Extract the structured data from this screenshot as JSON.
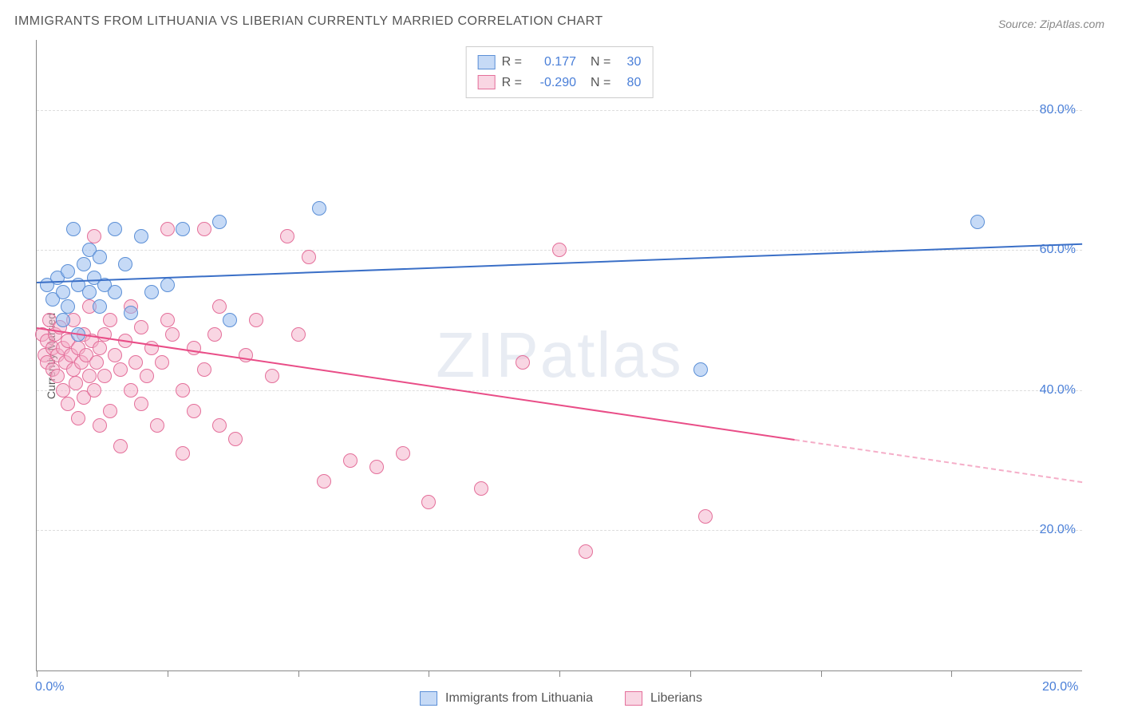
{
  "title": "IMMIGRANTS FROM LITHUANIA VS LIBERIAN CURRENTLY MARRIED CORRELATION CHART",
  "source_prefix": "Source: ",
  "source": "ZipAtlas.com",
  "ylabel": "Currently Married",
  "watermark_bold": "ZIP",
  "watermark_light": "atlas",
  "chart": {
    "type": "scatter",
    "background_color": "#ffffff",
    "grid_color": "#dddddd",
    "axis_color": "#888888",
    "tick_label_color": "#4a7fd8",
    "tick_fontsize": 16,
    "xlim": [
      0,
      20
    ],
    "ylim": [
      0,
      90
    ],
    "y_gridlines": [
      20,
      40,
      60,
      80
    ],
    "y_tick_labels": [
      "20.0%",
      "40.0%",
      "60.0%",
      "80.0%"
    ],
    "x_ticks": [
      0,
      2.5,
      5,
      7.5,
      10,
      12.5,
      15,
      17.5
    ],
    "x_tick_labels": {
      "0": "0.0%",
      "20": "20.0%"
    },
    "point_radius": 9,
    "series": [
      {
        "id": "lithuania",
        "label": "Immigrants from Lithuania",
        "fill": "rgba(151,187,238,0.55)",
        "stroke": "#5b8fd6",
        "trend_color": "#3a6fc7",
        "r": "0.177",
        "n": "30",
        "trend": {
          "x1": 0.0,
          "y1": 55.5,
          "x2": 20.0,
          "y2": 61.0,
          "dashed_from_x": null
        },
        "points": [
          [
            0.2,
            55
          ],
          [
            0.3,
            53
          ],
          [
            0.4,
            56
          ],
          [
            0.5,
            54
          ],
          [
            0.5,
            50
          ],
          [
            0.6,
            57
          ],
          [
            0.6,
            52
          ],
          [
            0.7,
            63
          ],
          [
            0.8,
            55
          ],
          [
            0.8,
            48
          ],
          [
            0.9,
            58
          ],
          [
            1.0,
            54
          ],
          [
            1.0,
            60
          ],
          [
            1.1,
            56
          ],
          [
            1.2,
            59
          ],
          [
            1.2,
            52
          ],
          [
            1.3,
            55
          ],
          [
            1.5,
            63
          ],
          [
            1.5,
            54
          ],
          [
            1.7,
            58
          ],
          [
            1.8,
            51
          ],
          [
            2.0,
            62
          ],
          [
            2.2,
            54
          ],
          [
            2.5,
            55
          ],
          [
            2.8,
            63
          ],
          [
            3.5,
            64
          ],
          [
            3.7,
            50
          ],
          [
            5.4,
            66
          ],
          [
            12.7,
            43
          ],
          [
            18.0,
            64
          ]
        ]
      },
      {
        "id": "liberians",
        "label": "Liberians",
        "fill": "rgba(244,174,199,0.5)",
        "stroke": "#e46f9a",
        "trend_color": "#e94d87",
        "r": "-0.290",
        "n": "80",
        "trend": {
          "x1": 0.0,
          "y1": 49.0,
          "x2": 20.0,
          "y2": 27.0,
          "dashed_from_x": 14.5
        },
        "points": [
          [
            0.1,
            48
          ],
          [
            0.15,
            45
          ],
          [
            0.2,
            47
          ],
          [
            0.2,
            44
          ],
          [
            0.25,
            50
          ],
          [
            0.3,
            46
          ],
          [
            0.3,
            43
          ],
          [
            0.35,
            48
          ],
          [
            0.4,
            45
          ],
          [
            0.4,
            42
          ],
          [
            0.45,
            49
          ],
          [
            0.5,
            46
          ],
          [
            0.5,
            40
          ],
          [
            0.55,
            44
          ],
          [
            0.6,
            47
          ],
          [
            0.6,
            38
          ],
          [
            0.65,
            45
          ],
          [
            0.7,
            43
          ],
          [
            0.7,
            50
          ],
          [
            0.75,
            41
          ],
          [
            0.8,
            46
          ],
          [
            0.8,
            36
          ],
          [
            0.85,
            44
          ],
          [
            0.9,
            48
          ],
          [
            0.9,
            39
          ],
          [
            0.95,
            45
          ],
          [
            1.0,
            42
          ],
          [
            1.0,
            52
          ],
          [
            1.05,
            47
          ],
          [
            1.1,
            40
          ],
          [
            1.1,
            62
          ],
          [
            1.15,
            44
          ],
          [
            1.2,
            46
          ],
          [
            1.2,
            35
          ],
          [
            1.3,
            48
          ],
          [
            1.3,
            42
          ],
          [
            1.4,
            50
          ],
          [
            1.4,
            37
          ],
          [
            1.5,
            45
          ],
          [
            1.6,
            43
          ],
          [
            1.6,
            32
          ],
          [
            1.7,
            47
          ],
          [
            1.8,
            40
          ],
          [
            1.8,
            52
          ],
          [
            1.9,
            44
          ],
          [
            2.0,
            38
          ],
          [
            2.0,
            49
          ],
          [
            2.1,
            42
          ],
          [
            2.2,
            46
          ],
          [
            2.3,
            35
          ],
          [
            2.4,
            44
          ],
          [
            2.5,
            50
          ],
          [
            2.5,
            63
          ],
          [
            2.6,
            48
          ],
          [
            2.8,
            40
          ],
          [
            2.8,
            31
          ],
          [
            3.0,
            46
          ],
          [
            3.0,
            37
          ],
          [
            3.2,
            43
          ],
          [
            3.2,
            63
          ],
          [
            3.4,
            48
          ],
          [
            3.5,
            52
          ],
          [
            3.5,
            35
          ],
          [
            3.8,
            33
          ],
          [
            4.0,
            45
          ],
          [
            4.2,
            50
          ],
          [
            4.5,
            42
          ],
          [
            4.8,
            62
          ],
          [
            5.0,
            48
          ],
          [
            5.2,
            59
          ],
          [
            5.5,
            27
          ],
          [
            6.0,
            30
          ],
          [
            6.5,
            29
          ],
          [
            7.0,
            31
          ],
          [
            7.5,
            24
          ],
          [
            8.5,
            26
          ],
          [
            9.3,
            44
          ],
          [
            10.0,
            60
          ],
          [
            10.5,
            17
          ],
          [
            12.8,
            22
          ]
        ]
      }
    ]
  },
  "stats_box": {
    "r_label": "R =",
    "n_label": "N ="
  }
}
